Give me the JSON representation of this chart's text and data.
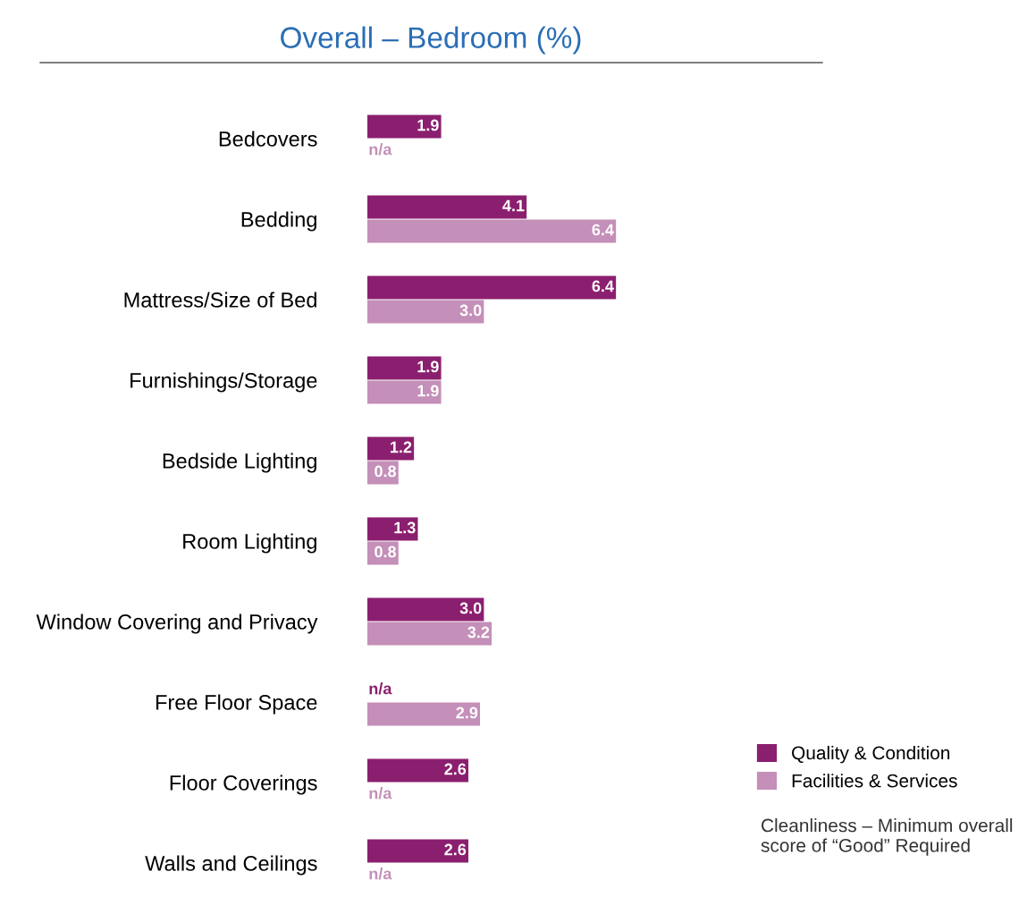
{
  "chart_data": {
    "type": "bar",
    "orientation": "horizontal",
    "title": "Overall – Bedroom (%)",
    "categories": [
      "Bedcovers",
      "Bedding",
      "Mattress/Size of Bed",
      "Furnishings/Storage",
      "Bedside Lighting",
      "Room Lighting",
      "Window Covering and Privacy",
      "Free Floor Space",
      "Floor Coverings",
      "Walls and Ceilings"
    ],
    "series": [
      {
        "name": "Quality & Condition",
        "color": "#8b1f6f",
        "values": [
          1.9,
          4.1,
          6.4,
          1.9,
          1.2,
          1.3,
          3.0,
          null,
          2.6,
          2.6
        ],
        "value_labels": [
          "1.9",
          "4.1",
          "6.4",
          "1.9",
          "1.2",
          "1.3",
          "3.0",
          "n/a",
          "2.6",
          "2.6"
        ]
      },
      {
        "name": "Facilities & Services",
        "color": "#c48fb8",
        "values": [
          null,
          6.4,
          3.0,
          1.9,
          0.8,
          0.8,
          3.2,
          2.9,
          null,
          null
        ],
        "value_labels": [
          "n/a",
          "6.4",
          "3.0",
          "1.9",
          "0.8",
          "0.8",
          "3.2",
          "2.9",
          "n/a",
          "n/a"
        ]
      }
    ],
    "annotations": [
      "Cleanliness – Minimum overall score of “Good” Required"
    ],
    "legend": "bottom right",
    "grid": false
  }
}
